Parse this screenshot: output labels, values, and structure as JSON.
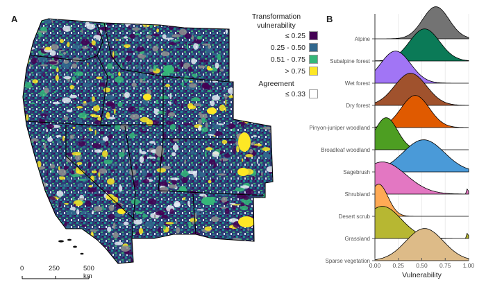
{
  "panel_a": {
    "letter": "A",
    "legend": {
      "title_line1": "Transformation",
      "title_line2": "vulnerability",
      "classes": [
        {
          "label": "≤ 0.25",
          "color": "#440154"
        },
        {
          "label": "0.25 - 0.50",
          "color": "#31688e"
        },
        {
          "label": "0.51 - 0.75",
          "color": "#35b779"
        },
        {
          "label": "> 0.75",
          "color": "#fde725"
        }
      ],
      "agreement_title": "Agreement",
      "agreement_label": "≤ 0.33",
      "agreement_color": "#ffffff"
    },
    "scalebar": {
      "ticks": [
        "0",
        "250",
        "500 km"
      ]
    }
  },
  "panel_b": {
    "letter": "B",
    "chart_data": {
      "type": "ridgeline",
      "xlabel": "Vulnerability",
      "xticks": [
        "0.00",
        "0.25",
        "0.50",
        "0.75",
        "1.00"
      ],
      "xlim": [
        0,
        1
      ],
      "series": [
        {
          "name": "Alpine",
          "color": "#737373",
          "peak": 0.65,
          "spread": 0.14
        },
        {
          "name": "Subalpine forest",
          "color": "#0b7a57",
          "peak": 0.53,
          "spread": 0.16
        },
        {
          "name": "Wet forest",
          "color": "#a175f5",
          "peak": 0.22,
          "spread": 0.16
        },
        {
          "name": "Dry forest",
          "color": "#a0522d",
          "peak": 0.38,
          "spread": 0.17
        },
        {
          "name": "Pinyon-juniper woodland",
          "color": "#e05a00",
          "peak": 0.43,
          "spread": 0.15
        },
        {
          "name": "Broadleaf woodland",
          "color": "#4d9e22",
          "peak": 0.12,
          "spread": 0.12
        },
        {
          "name": "Sagebrush",
          "color": "#4a9ad8",
          "peak": 0.52,
          "spread": 0.22
        },
        {
          "name": "Shrubland",
          "color": "#e377c2",
          "peak": 0.08,
          "spread": 0.25
        },
        {
          "name": "Desert scrub",
          "color": "#ffaa55",
          "peak": 0.04,
          "spread": 0.1
        },
        {
          "name": "Grassland",
          "color": "#b7b732",
          "peak": 0.08,
          "spread": 0.2
        },
        {
          "name": "Sparse vegetation",
          "color": "#ddbb88",
          "peak": 0.53,
          "spread": 0.2
        }
      ]
    }
  }
}
